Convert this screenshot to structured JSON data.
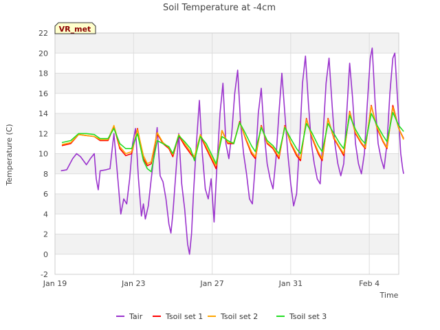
{
  "chart_data": {
    "type": "line",
    "title": "Soil Temperature at -4cm",
    "xlabel": "Time",
    "ylabel": "Temperature (C)",
    "badge": "VR_met",
    "x_domain": [
      0,
      17.5
    ],
    "ylim": [
      -2,
      22
    ],
    "yticks": [
      -2,
      0,
      2,
      4,
      6,
      8,
      10,
      12,
      14,
      16,
      18,
      20,
      22
    ],
    "xticks": [
      {
        "value": 0,
        "label": "Jan 19"
      },
      {
        "value": 4,
        "label": "Jan 23"
      },
      {
        "value": 8,
        "label": "Jan 27"
      },
      {
        "value": 12,
        "label": "Jan 31"
      },
      {
        "value": 16,
        "label": "Feb 4"
      }
    ],
    "grid": true,
    "legend_position": "bottom",
    "series": [
      {
        "name": "Tair",
        "color": "#9a32cd",
        "points": [
          [
            0.3,
            8.3
          ],
          [
            0.6,
            8.4
          ],
          [
            0.9,
            9.5
          ],
          [
            1.1,
            10.0
          ],
          [
            1.3,
            9.7
          ],
          [
            1.6,
            8.9
          ],
          [
            1.8,
            9.5
          ],
          [
            2.0,
            10.0
          ],
          [
            2.1,
            7.5
          ],
          [
            2.2,
            6.4
          ],
          [
            2.3,
            8.3
          ],
          [
            2.6,
            8.4
          ],
          [
            2.8,
            8.5
          ],
          [
            3.0,
            12.0
          ],
          [
            3.2,
            7.5
          ],
          [
            3.35,
            4.0
          ],
          [
            3.5,
            5.5
          ],
          [
            3.65,
            5.0
          ],
          [
            3.8,
            7.5
          ],
          [
            3.95,
            11.0
          ],
          [
            4.1,
            12.5
          ],
          [
            4.25,
            7.5
          ],
          [
            4.4,
            3.8
          ],
          [
            4.5,
            5.0
          ],
          [
            4.6,
            3.5
          ],
          [
            4.75,
            4.8
          ],
          [
            4.9,
            7.5
          ],
          [
            5.05,
            10.0
          ],
          [
            5.2,
            12.6
          ],
          [
            5.35,
            7.8
          ],
          [
            5.5,
            7.2
          ],
          [
            5.65,
            5.5
          ],
          [
            5.8,
            3.0
          ],
          [
            5.9,
            2.1
          ],
          [
            6.0,
            4.0
          ],
          [
            6.15,
            8.0
          ],
          [
            6.3,
            12.0
          ],
          [
            6.45,
            7.0
          ],
          [
            6.6,
            4.5
          ],
          [
            6.75,
            1.0
          ],
          [
            6.85,
            0.0
          ],
          [
            6.95,
            2.0
          ],
          [
            7.05,
            6.0
          ],
          [
            7.2,
            11.0
          ],
          [
            7.35,
            15.3
          ],
          [
            7.5,
            10.0
          ],
          [
            7.65,
            6.5
          ],
          [
            7.8,
            5.5
          ],
          [
            7.95,
            7.5
          ],
          [
            8.1,
            3.2
          ],
          [
            8.25,
            9.0
          ],
          [
            8.4,
            14.0
          ],
          [
            8.55,
            17.0
          ],
          [
            8.7,
            11.0
          ],
          [
            8.85,
            9.5
          ],
          [
            9.0,
            12.0
          ],
          [
            9.15,
            16.0
          ],
          [
            9.3,
            18.3
          ],
          [
            9.45,
            13.0
          ],
          [
            9.6,
            10.0
          ],
          [
            9.75,
            8.0
          ],
          [
            9.9,
            5.5
          ],
          [
            10.05,
            5.0
          ],
          [
            10.2,
            9.0
          ],
          [
            10.35,
            14.0
          ],
          [
            10.5,
            16.5
          ],
          [
            10.65,
            12.0
          ],
          [
            10.8,
            9.0
          ],
          [
            10.95,
            7.5
          ],
          [
            11.1,
            6.5
          ],
          [
            11.25,
            9.5
          ],
          [
            11.4,
            14.0
          ],
          [
            11.55,
            18.0
          ],
          [
            11.7,
            14.0
          ],
          [
            11.85,
            10.0
          ],
          [
            12.0,
            7.0
          ],
          [
            12.15,
            4.8
          ],
          [
            12.3,
            6.0
          ],
          [
            12.45,
            11.0
          ],
          [
            12.6,
            17.0
          ],
          [
            12.75,
            19.7
          ],
          [
            12.9,
            15.0
          ],
          [
            13.05,
            11.0
          ],
          [
            13.2,
            9.0
          ],
          [
            13.35,
            7.5
          ],
          [
            13.5,
            7.0
          ],
          [
            13.65,
            12.0
          ],
          [
            13.8,
            17.0
          ],
          [
            13.95,
            19.5
          ],
          [
            14.1,
            15.0
          ],
          [
            14.25,
            11.0
          ],
          [
            14.4,
            9.0
          ],
          [
            14.55,
            7.8
          ],
          [
            14.7,
            9.0
          ],
          [
            14.85,
            14.0
          ],
          [
            15.0,
            19.0
          ],
          [
            15.15,
            15.5
          ],
          [
            15.3,
            11.0
          ],
          [
            15.45,
            9.0
          ],
          [
            15.6,
            8.0
          ],
          [
            15.75,
            10.0
          ],
          [
            15.9,
            15.0
          ],
          [
            16.05,
            19.5
          ],
          [
            16.15,
            20.5
          ],
          [
            16.3,
            15.0
          ],
          [
            16.45,
            11.0
          ],
          [
            16.6,
            9.5
          ],
          [
            16.75,
            8.5
          ],
          [
            16.9,
            11.0
          ],
          [
            17.05,
            16.0
          ],
          [
            17.2,
            19.5
          ],
          [
            17.3,
            20.0
          ],
          [
            17.45,
            15.0
          ],
          [
            17.6,
            10.0
          ],
          [
            17.7,
            8.5
          ],
          [
            17.75,
            8.0
          ]
        ]
      },
      {
        "name": "Tsoil set 1",
        "color": "#ff0000",
        "points": [
          [
            0.35,
            10.8
          ],
          [
            0.8,
            11.0
          ],
          [
            1.2,
            11.9
          ],
          [
            1.6,
            11.8
          ],
          [
            2.0,
            11.7
          ],
          [
            2.3,
            11.3
          ],
          [
            2.7,
            11.3
          ],
          [
            3.0,
            12.7
          ],
          [
            3.3,
            10.5
          ],
          [
            3.6,
            9.8
          ],
          [
            3.9,
            10.0
          ],
          [
            4.2,
            12.5
          ],
          [
            4.5,
            9.5
          ],
          [
            4.7,
            8.8
          ],
          [
            4.9,
            9.0
          ],
          [
            5.2,
            12.0
          ],
          [
            5.5,
            11.0
          ],
          [
            5.8,
            10.5
          ],
          [
            6.0,
            9.7
          ],
          [
            6.3,
            11.8
          ],
          [
            6.6,
            10.8
          ],
          [
            6.9,
            10.0
          ],
          [
            7.1,
            9.5
          ],
          [
            7.4,
            11.8
          ],
          [
            7.7,
            10.5
          ],
          [
            8.0,
            9.3
          ],
          [
            8.2,
            8.5
          ],
          [
            8.5,
            12.3
          ],
          [
            8.8,
            11.0
          ],
          [
            9.1,
            11.0
          ],
          [
            9.4,
            13.2
          ],
          [
            9.7,
            11.5
          ],
          [
            10.0,
            10.0
          ],
          [
            10.2,
            9.5
          ],
          [
            10.5,
            12.8
          ],
          [
            10.8,
            11.0
          ],
          [
            11.1,
            10.5
          ],
          [
            11.4,
            9.5
          ],
          [
            11.7,
            12.8
          ],
          [
            12.0,
            11.0
          ],
          [
            12.3,
            9.8
          ],
          [
            12.5,
            9.3
          ],
          [
            12.8,
            13.5
          ],
          [
            13.1,
            11.5
          ],
          [
            13.4,
            10.0
          ],
          [
            13.6,
            9.3
          ],
          [
            13.9,
            13.5
          ],
          [
            14.2,
            11.5
          ],
          [
            14.5,
            10.5
          ],
          [
            14.7,
            9.8
          ],
          [
            15.0,
            14.2
          ],
          [
            15.3,
            12.0
          ],
          [
            15.6,
            11.0
          ],
          [
            15.8,
            10.5
          ],
          [
            16.1,
            14.8
          ],
          [
            16.4,
            12.5
          ],
          [
            16.7,
            11.2
          ],
          [
            16.9,
            10.5
          ],
          [
            17.2,
            14.8
          ],
          [
            17.5,
            12.5
          ],
          [
            17.75,
            11.5
          ]
        ]
      },
      {
        "name": "Tsoil set 2",
        "color": "#ffa500",
        "points": [
          [
            0.35,
            10.9
          ],
          [
            0.8,
            11.1
          ],
          [
            1.2,
            11.9
          ],
          [
            1.6,
            11.8
          ],
          [
            2.0,
            11.7
          ],
          [
            2.3,
            11.4
          ],
          [
            2.7,
            11.4
          ],
          [
            3.0,
            12.8
          ],
          [
            3.3,
            10.7
          ],
          [
            3.6,
            10.0
          ],
          [
            3.9,
            10.2
          ],
          [
            4.2,
            12.4
          ],
          [
            4.5,
            9.8
          ],
          [
            4.7,
            9.0
          ],
          [
            4.9,
            9.2
          ],
          [
            5.2,
            12.1
          ],
          [
            5.5,
            11.1
          ],
          [
            5.8,
            10.6
          ],
          [
            6.0,
            9.9
          ],
          [
            6.3,
            11.9
          ],
          [
            6.6,
            11.0
          ],
          [
            6.9,
            10.2
          ],
          [
            7.1,
            9.7
          ],
          [
            7.4,
            11.9
          ],
          [
            7.7,
            10.7
          ],
          [
            8.0,
            9.5
          ],
          [
            8.2,
            8.8
          ],
          [
            8.5,
            12.3
          ],
          [
            8.8,
            11.1
          ],
          [
            9.1,
            11.1
          ],
          [
            9.4,
            13.1
          ],
          [
            9.7,
            11.6
          ],
          [
            10.0,
            10.2
          ],
          [
            10.2,
            9.7
          ],
          [
            10.5,
            12.7
          ],
          [
            10.8,
            11.1
          ],
          [
            11.1,
            10.6
          ],
          [
            11.4,
            9.7
          ],
          [
            11.7,
            12.7
          ],
          [
            12.0,
            11.1
          ],
          [
            12.3,
            10.0
          ],
          [
            12.5,
            9.5
          ],
          [
            12.8,
            13.4
          ],
          [
            13.1,
            11.6
          ],
          [
            13.4,
            10.2
          ],
          [
            13.6,
            9.5
          ],
          [
            13.9,
            13.4
          ],
          [
            14.2,
            11.6
          ],
          [
            14.5,
            10.6
          ],
          [
            14.7,
            10.0
          ],
          [
            15.0,
            14.1
          ],
          [
            15.3,
            12.1
          ],
          [
            15.6,
            11.1
          ],
          [
            15.8,
            10.6
          ],
          [
            16.1,
            14.7
          ],
          [
            16.4,
            12.6
          ],
          [
            16.7,
            11.3
          ],
          [
            16.9,
            10.6
          ],
          [
            17.2,
            14.6
          ],
          [
            17.5,
            12.5
          ],
          [
            17.75,
            11.4
          ]
        ]
      },
      {
        "name": "Tsoil set 3",
        "color": "#22dd22",
        "points": [
          [
            0.35,
            11.1
          ],
          [
            0.8,
            11.3
          ],
          [
            1.2,
            12.0
          ],
          [
            1.6,
            12.0
          ],
          [
            2.0,
            11.9
          ],
          [
            2.3,
            11.5
          ],
          [
            2.7,
            11.5
          ],
          [
            3.0,
            12.5
          ],
          [
            3.3,
            11.0
          ],
          [
            3.6,
            10.5
          ],
          [
            3.9,
            10.5
          ],
          [
            4.2,
            12.0
          ],
          [
            4.5,
            9.3
          ],
          [
            4.7,
            8.5
          ],
          [
            4.9,
            8.2
          ],
          [
            5.2,
            11.3
          ],
          [
            5.5,
            11.0
          ],
          [
            5.8,
            10.7
          ],
          [
            6.0,
            10.0
          ],
          [
            6.3,
            11.8
          ],
          [
            6.6,
            11.2
          ],
          [
            6.9,
            10.5
          ],
          [
            7.1,
            9.3
          ],
          [
            7.4,
            11.7
          ],
          [
            7.7,
            11.0
          ],
          [
            8.0,
            9.8
          ],
          [
            8.2,
            9.0
          ],
          [
            8.5,
            11.7
          ],
          [
            8.8,
            11.3
          ],
          [
            9.1,
            11.0
          ],
          [
            9.4,
            13.1
          ],
          [
            9.7,
            12.0
          ],
          [
            10.0,
            10.8
          ],
          [
            10.2,
            10.2
          ],
          [
            10.5,
            12.6
          ],
          [
            10.8,
            11.3
          ],
          [
            11.1,
            10.8
          ],
          [
            11.4,
            10.0
          ],
          [
            11.7,
            12.6
          ],
          [
            12.0,
            11.5
          ],
          [
            12.3,
            10.5
          ],
          [
            12.5,
            10.0
          ],
          [
            12.8,
            13.0
          ],
          [
            13.1,
            12.0
          ],
          [
            13.4,
            10.8
          ],
          [
            13.6,
            10.2
          ],
          [
            13.9,
            13.0
          ],
          [
            14.2,
            12.0
          ],
          [
            14.5,
            11.0
          ],
          [
            14.7,
            10.5
          ],
          [
            15.0,
            13.8
          ],
          [
            15.3,
            12.4
          ],
          [
            15.6,
            11.4
          ],
          [
            15.8,
            11.0
          ],
          [
            16.1,
            14.0
          ],
          [
            16.4,
            12.8
          ],
          [
            16.7,
            11.8
          ],
          [
            16.9,
            11.2
          ],
          [
            17.2,
            14.1
          ],
          [
            17.5,
            12.8
          ],
          [
            17.75,
            12.2
          ]
        ]
      }
    ]
  }
}
